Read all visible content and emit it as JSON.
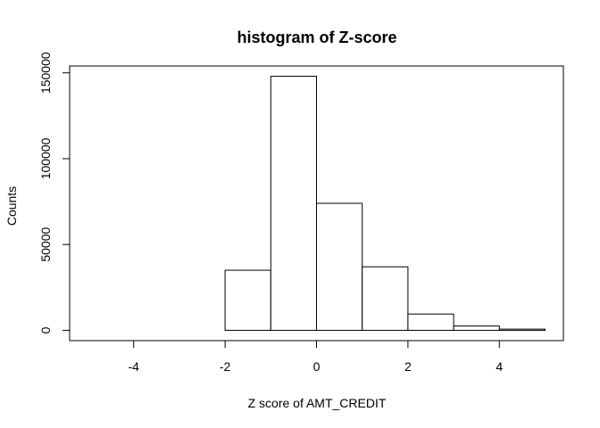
{
  "chart_data": {
    "type": "bar",
    "title": "histogram of Z-score",
    "xlabel": "Z score of AMT_CREDIT",
    "ylabel": "Counts",
    "bin_edges": [
      -2,
      -1,
      0,
      1,
      2,
      3,
      4,
      5
    ],
    "values": [
      35000,
      148000,
      74000,
      37000,
      9500,
      2500,
      700
    ],
    "xlim": [
      -5.4,
      5.4
    ],
    "ylim": [
      -6000,
      154000
    ],
    "xticks": [
      -4,
      -2,
      0,
      2,
      4
    ],
    "xtick_labels": [
      "-4",
      "-2",
      "0",
      "2",
      "4"
    ],
    "yticks": [
      0,
      50000,
      100000,
      150000
    ],
    "ytick_labels": [
      "0",
      "50000",
      "100000",
      "150000"
    ],
    "grid": false,
    "bar_fill": "#ffffff",
    "bar_stroke": "#000000"
  }
}
